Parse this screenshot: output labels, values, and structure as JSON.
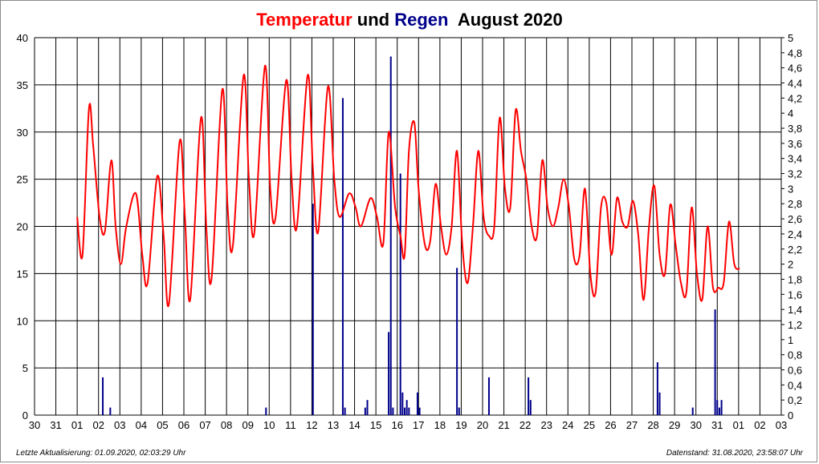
{
  "title": {
    "part1": "Temperatur",
    "part2": "und",
    "part3": "Regen",
    "part4": "August 2020"
  },
  "footer": {
    "left": "Letzte Aktualisierung: 01.09.2020, 02:03:29 Uhr",
    "right": "Datenstand: 31.08.2020, 23:58:07 Uhr"
  },
  "colors": {
    "temperature": "#ff0000",
    "rain": "#00008b",
    "grid": "#000000"
  },
  "chart_data": {
    "type": "line",
    "title": "Temperatur und Regen August 2020",
    "x_tick_labels": [
      "30",
      "31",
      "01",
      "02",
      "03",
      "04",
      "05",
      "06",
      "07",
      "08",
      "09",
      "10",
      "11",
      "12",
      "13",
      "14",
      "15",
      "16",
      "17",
      "18",
      "19",
      "20",
      "21",
      "22",
      "23",
      "24",
      "25",
      "26",
      "27",
      "28",
      "29",
      "30",
      "31",
      "01",
      "02",
      "03"
    ],
    "y_left": {
      "range": [
        0,
        40
      ],
      "ticks": [
        "0",
        "5",
        "10",
        "15",
        "20",
        "25",
        "30",
        "35",
        "40"
      ]
    },
    "y_right": {
      "range": [
        0,
        5
      ],
      "ticks": [
        "0",
        "0,2",
        "0,4",
        "0,6",
        "0,8",
        "1",
        "1,2",
        "1,4",
        "1,6",
        "1,8",
        "2",
        "2,2",
        "2,4",
        "2,6",
        "2,8",
        "3",
        "3,2",
        "3,4",
        "3,6",
        "3,8",
        "4",
        "4,2",
        "4,4",
        "4,6",
        "4,8",
        "5"
      ]
    },
    "grid": true,
    "series": [
      {
        "name": "Temperatur",
        "axis": "left",
        "style": "line",
        "x_day": [
          1.0,
          1.25,
          1.55,
          1.75,
          2.05,
          2.3,
          2.6,
          2.8,
          3.05,
          3.3,
          3.75,
          4.05,
          4.3,
          4.75,
          5.05,
          5.3,
          5.8,
          6.05,
          6.3,
          6.8,
          7.05,
          7.3,
          7.8,
          8.05,
          8.3,
          8.8,
          9.05,
          9.3,
          9.8,
          10.05,
          10.3,
          10.8,
          11.05,
          11.3,
          11.8,
          12.05,
          12.3,
          12.75,
          13.05,
          13.3,
          13.75,
          14.05,
          14.3,
          14.75,
          15.05,
          15.35,
          15.6,
          15.9,
          16.15,
          16.35,
          16.55,
          16.8,
          17.0,
          17.3,
          17.55,
          17.8,
          18.05,
          18.3,
          18.55,
          18.8,
          19.05,
          19.3,
          19.55,
          19.8,
          20.05,
          20.3,
          20.55,
          20.8,
          21.05,
          21.3,
          21.55,
          21.8,
          22.05,
          22.3,
          22.55,
          22.8,
          23.05,
          23.3,
          23.55,
          23.8,
          24.05,
          24.3,
          24.55,
          24.8,
          25.05,
          25.3,
          25.55,
          25.8,
          26.05,
          26.3,
          26.55,
          26.8,
          27.05,
          27.3,
          27.55,
          27.8,
          28.05,
          28.3,
          28.55,
          28.8,
          29.05,
          29.3,
          29.55,
          29.8,
          30.05,
          30.3,
          30.55,
          30.8,
          31.05,
          31.3,
          31.55,
          31.8,
          32.05
        ],
        "values": [
          21,
          17,
          32.5,
          28.5,
          21,
          19.5,
          27,
          20,
          16,
          20,
          23.5,
          17,
          14,
          25.3,
          19,
          11.8,
          29,
          21,
          12.3,
          31.5,
          20,
          14.5,
          34.5,
          22,
          18,
          36,
          25,
          19.3,
          37,
          24,
          21,
          35.5,
          25,
          20,
          36,
          26,
          19.5,
          34.8,
          25,
          21,
          23.5,
          22,
          20,
          23,
          21,
          18.2,
          30,
          22,
          19,
          17,
          28,
          31,
          24,
          18,
          18.5,
          24.5,
          20,
          17,
          20,
          28,
          18,
          14,
          20,
          28,
          21,
          19,
          20,
          31.5,
          24,
          22,
          32.3,
          28,
          25,
          20,
          19,
          27,
          22,
          20,
          22,
          25,
          22,
          16.5,
          17,
          24,
          15,
          13,
          22,
          22.5,
          17,
          23,
          20.5,
          20,
          22.7,
          19,
          12.2,
          20,
          24.3,
          17,
          15,
          22.3,
          18,
          14,
          13,
          22,
          15,
          12.3,
          20,
          13.5,
          13.5,
          14,
          20.5,
          16,
          15.5
        ]
      },
      {
        "name": "Regen",
        "axis": "right",
        "style": "bars",
        "x_day": [
          2.2,
          2.55,
          9.85,
          12.05,
          13.45,
          13.55,
          14.5,
          14.6,
          15.6,
          15.7,
          15.8,
          16.15,
          16.25,
          16.35,
          16.45,
          16.55,
          16.95,
          17.05,
          18.8,
          18.9,
          20.3,
          22.15,
          22.25,
          28.2,
          28.3,
          29.85,
          30.9,
          31.0,
          31.1,
          31.2
        ],
        "values": [
          0.5,
          0.1,
          0.1,
          2.8,
          4.2,
          0.1,
          0.1,
          0.2,
          1.1,
          4.75,
          0.1,
          3.2,
          0.3,
          0.1,
          0.2,
          0.1,
          0.3,
          0.1,
          1.95,
          0.1,
          0.5,
          0.5,
          0.2,
          0.7,
          0.3,
          0.1,
          1.4,
          0.2,
          0.1,
          0.2
        ]
      }
    ]
  }
}
